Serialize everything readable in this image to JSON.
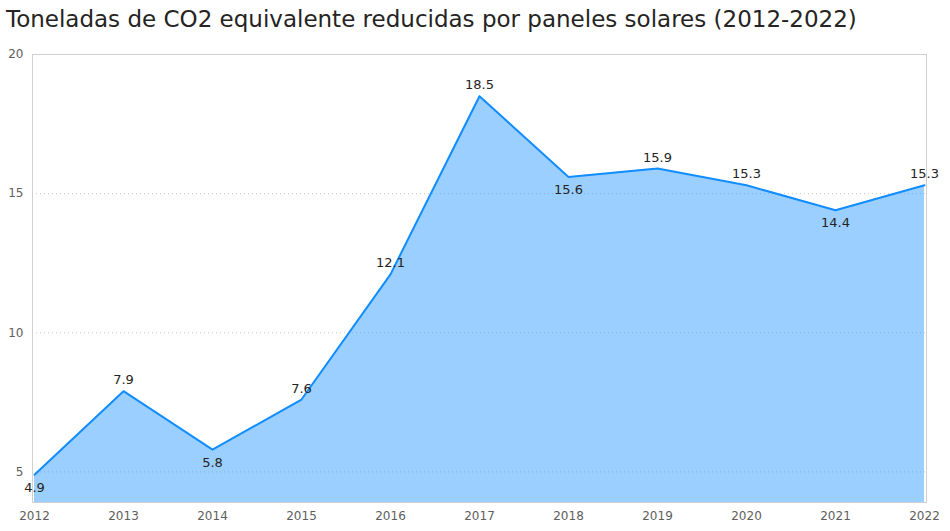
{
  "chart_data": {
    "type": "area",
    "title": "Toneladas de CO2 equivalente reducidas por paneles solares (2012-2022)",
    "categories": [
      "2012",
      "2013",
      "2014",
      "2015",
      "2016",
      "2017",
      "2018",
      "2019",
      "2020",
      "2021",
      "2022"
    ],
    "values": [
      4.9,
      7.9,
      5.8,
      7.6,
      12.1,
      18.5,
      15.6,
      15.9,
      15.3,
      14.4,
      15.3
    ],
    "color": "#118DFF",
    "ylim": [
      3.9,
      20
    ],
    "yticks": [
      5,
      10,
      15,
      20
    ],
    "grid": true,
    "data_labels": true
  }
}
